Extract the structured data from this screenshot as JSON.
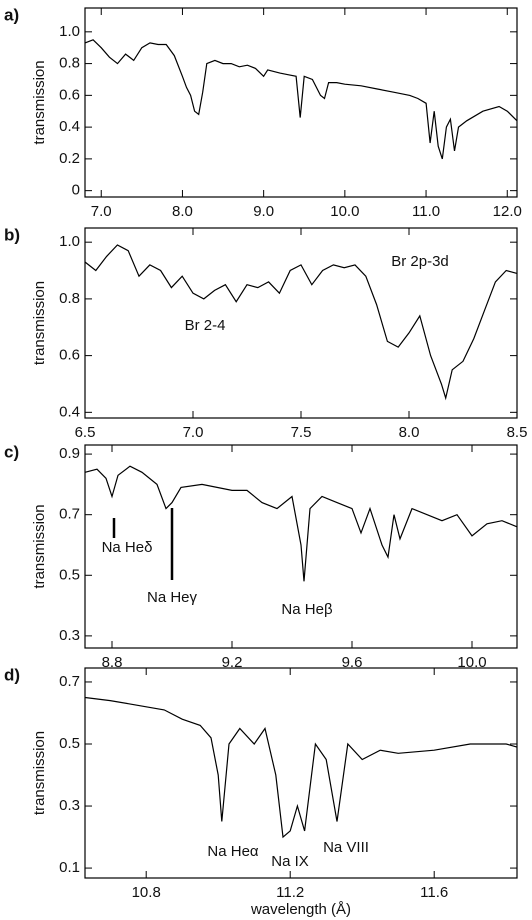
{
  "chart_data": [
    {
      "type": "line",
      "label": "a)",
      "ylabel": "transmission",
      "color": "#000000",
      "xlim": [
        6.8,
        12.12
      ],
      "ylim": [
        -0.04,
        1.15
      ],
      "xticks": [
        {
          "value": 7,
          "label": "7.0"
        },
        {
          "value": 8,
          "label": "8.0"
        },
        {
          "value": 9,
          "label": "9.0"
        },
        {
          "value": 10,
          "label": "10.0"
        },
        {
          "value": 11,
          "label": "11.0"
        },
        {
          "value": 12,
          "label": "12.0"
        }
      ],
      "yticks": [
        0,
        0.2,
        0.4,
        0.6,
        0.8,
        {
          "value": 1,
          "label": "1.0"
        }
      ],
      "x": [
        6.8,
        6.9,
        7.0,
        7.1,
        7.2,
        7.3,
        7.4,
        7.5,
        7.6,
        7.7,
        7.8,
        7.9,
        8.0,
        8.05,
        8.1,
        8.15,
        8.2,
        8.25,
        8.3,
        8.4,
        8.5,
        8.6,
        8.7,
        8.8,
        8.9,
        9.0,
        9.05,
        9.2,
        9.3,
        9.4,
        9.45,
        9.5,
        9.6,
        9.7,
        9.75,
        9.8,
        9.9,
        10.0,
        10.2,
        10.4,
        10.6,
        10.8,
        10.9,
        11.0,
        11.05,
        11.1,
        11.15,
        11.2,
        11.25,
        11.3,
        11.35,
        11.4,
        11.5,
        11.7,
        11.9,
        12.0,
        12.12
      ],
      "values": [
        0.93,
        0.95,
        0.9,
        0.84,
        0.8,
        0.86,
        0.82,
        0.9,
        0.93,
        0.92,
        0.92,
        0.85,
        0.72,
        0.65,
        0.6,
        0.5,
        0.48,
        0.62,
        0.8,
        0.82,
        0.8,
        0.8,
        0.78,
        0.79,
        0.77,
        0.72,
        0.76,
        0.74,
        0.73,
        0.72,
        0.46,
        0.72,
        0.7,
        0.6,
        0.58,
        0.68,
        0.68,
        0.67,
        0.66,
        0.64,
        0.62,
        0.6,
        0.58,
        0.55,
        0.3,
        0.5,
        0.28,
        0.2,
        0.4,
        0.45,
        0.25,
        0.4,
        0.44,
        0.5,
        0.53,
        0.5,
        0.44
      ]
    },
    {
      "type": "line",
      "label": "b)",
      "ylabel": "transmission",
      "color": "#000000",
      "xlim": [
        6.5,
        8.5
      ],
      "ylim": [
        0.38,
        1.05
      ],
      "xticks": [
        6.5,
        {
          "value": 7,
          "label": "7.0"
        },
        7.5,
        {
          "value": 8,
          "label": "8.0"
        },
        8.5
      ],
      "yticks": [
        0.4,
        0.6,
        0.8,
        {
          "value": 1,
          "label": "1.0"
        }
      ],
      "annotations": [
        "Br 2-4",
        "Br 2p-3d"
      ],
      "x": [
        6.5,
        6.55,
        6.6,
        6.65,
        6.7,
        6.75,
        6.8,
        6.85,
        6.9,
        6.95,
        7.0,
        7.05,
        7.1,
        7.15,
        7.2,
        7.25,
        7.3,
        7.35,
        7.4,
        7.45,
        7.5,
        7.55,
        7.6,
        7.65,
        7.7,
        7.75,
        7.8,
        7.85,
        7.9,
        7.95,
        8.0,
        8.05,
        8.1,
        8.15,
        8.17,
        8.2,
        8.25,
        8.3,
        8.35,
        8.4,
        8.45,
        8.5
      ],
      "values": [
        0.93,
        0.9,
        0.95,
        0.99,
        0.97,
        0.88,
        0.92,
        0.9,
        0.84,
        0.88,
        0.82,
        0.8,
        0.83,
        0.85,
        0.79,
        0.85,
        0.84,
        0.86,
        0.82,
        0.9,
        0.92,
        0.85,
        0.9,
        0.92,
        0.91,
        0.92,
        0.88,
        0.78,
        0.65,
        0.63,
        0.68,
        0.74,
        0.6,
        0.5,
        0.45,
        0.55,
        0.58,
        0.66,
        0.76,
        0.86,
        0.9,
        0.89
      ]
    },
    {
      "type": "line",
      "label": "c)",
      "ylabel": "transmission",
      "color": "#000000",
      "xlim": [
        8.71,
        10.15
      ],
      "ylim": [
        0.26,
        0.93
      ],
      "xticks": [
        8.8,
        9.2,
        9.6,
        {
          "value": 10,
          "label": "10.0"
        }
      ],
      "yticks": [
        0.3,
        0.5,
        0.7,
        0.9
      ],
      "annotations": [
        "Na Heδ",
        "Na Heγ",
        "Na Heβ"
      ],
      "x": [
        8.71,
        8.75,
        8.78,
        8.8,
        8.82,
        8.86,
        8.9,
        8.95,
        8.98,
        9.0,
        9.03,
        9.1,
        9.2,
        9.25,
        9.3,
        9.35,
        9.4,
        9.43,
        9.44,
        9.46,
        9.5,
        9.55,
        9.6,
        9.63,
        9.66,
        9.7,
        9.72,
        9.74,
        9.76,
        9.8,
        9.9,
        9.95,
        10.0,
        10.05,
        10.1,
        10.15
      ],
      "values": [
        0.84,
        0.85,
        0.82,
        0.76,
        0.83,
        0.86,
        0.84,
        0.8,
        0.72,
        0.74,
        0.79,
        0.8,
        0.78,
        0.78,
        0.74,
        0.72,
        0.76,
        0.6,
        0.48,
        0.72,
        0.76,
        0.74,
        0.72,
        0.64,
        0.72,
        0.6,
        0.56,
        0.7,
        0.62,
        0.72,
        0.68,
        0.7,
        0.63,
        0.67,
        0.68,
        0.66
      ]
    },
    {
      "type": "line",
      "label": "d)",
      "ylabel": "transmission",
      "xlabel": "wavelength (Å)",
      "color": "#000000",
      "xlim": [
        10.63,
        11.83
      ],
      "ylim": [
        0.068,
        0.745
      ],
      "xticks": [
        10.8,
        11.2,
        11.6
      ],
      "yticks": [
        0.1,
        0.3,
        0.5,
        0.7
      ],
      "annotations": [
        "Na Heα",
        "Na IX",
        "Na VIII"
      ],
      "x": [
        10.63,
        10.7,
        10.75,
        10.8,
        10.85,
        10.9,
        10.95,
        10.98,
        11.0,
        11.01,
        11.03,
        11.06,
        11.1,
        11.13,
        11.16,
        11.18,
        11.2,
        11.22,
        11.24,
        11.27,
        11.3,
        11.33,
        11.36,
        11.4,
        11.45,
        11.5,
        11.6,
        11.7,
        11.8,
        11.83
      ],
      "values": [
        0.65,
        0.64,
        0.63,
        0.62,
        0.61,
        0.58,
        0.56,
        0.52,
        0.4,
        0.25,
        0.5,
        0.55,
        0.5,
        0.55,
        0.4,
        0.2,
        0.22,
        0.3,
        0.22,
        0.5,
        0.45,
        0.25,
        0.5,
        0.45,
        0.48,
        0.47,
        0.48,
        0.5,
        0.5,
        0.49
      ]
    }
  ]
}
